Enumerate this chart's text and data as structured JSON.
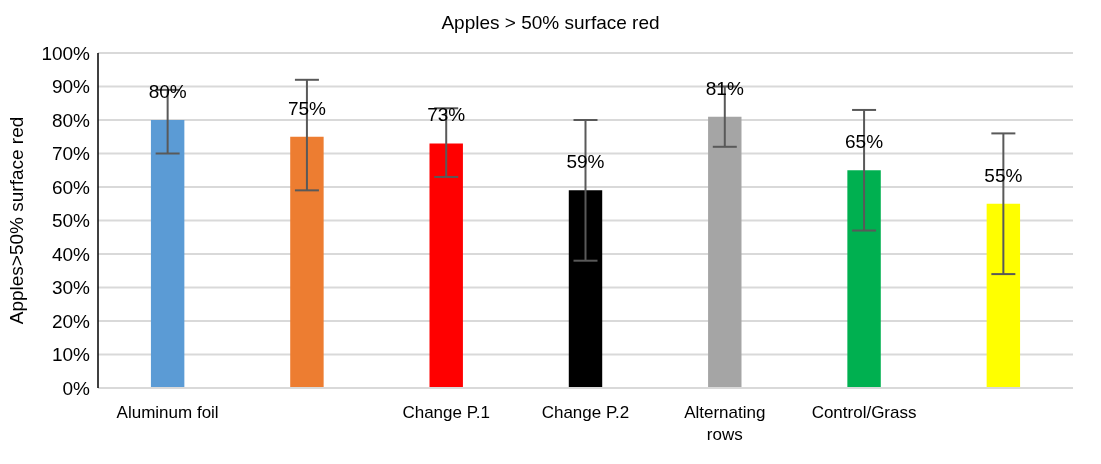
{
  "chart_data": {
    "type": "bar",
    "title": "Apples > 50% surface red",
    "ylabel": "Apples>50% surface red",
    "categories": [
      "Aluminum foil",
      null,
      "Change P.1",
      "Change P.2",
      "Alternating rows",
      "Control/Grass",
      null
    ],
    "values": [
      80,
      75,
      73,
      59,
      81,
      65,
      55
    ],
    "colors": [
      "#5b9bd5",
      "#ed7d31",
      "#ff0000",
      "#000000",
      "#a5a5a5",
      "#00b050",
      "#ffff00"
    ],
    "errors": [
      [
        70,
        89
      ],
      [
        59,
        92
      ],
      [
        63,
        83.5
      ],
      [
        38,
        80
      ],
      [
        72,
        90
      ],
      [
        47,
        83
      ],
      [
        34,
        76
      ]
    ],
    "value_labels": [
      "80%",
      "75%",
      "73%",
      "59%",
      "81%",
      "65%",
      "55%"
    ],
    "ylim": [
      0,
      100
    ],
    "yticks": [
      {
        "value": 0,
        "label": "0%"
      },
      {
        "value": 10,
        "label": "10%"
      },
      {
        "value": 20,
        "label": "20%"
      },
      {
        "value": 30,
        "label": "30%"
      },
      {
        "value": 40,
        "label": "40%"
      },
      {
        "value": 50,
        "label": "50%"
      },
      {
        "value": 60,
        "label": "60%"
      },
      {
        "value": 70,
        "label": "70%"
      },
      {
        "value": 80,
        "label": "80%"
      },
      {
        "value": 90,
        "label": "90%"
      },
      {
        "value": 100,
        "label": "100%"
      }
    ],
    "grid": "y"
  }
}
